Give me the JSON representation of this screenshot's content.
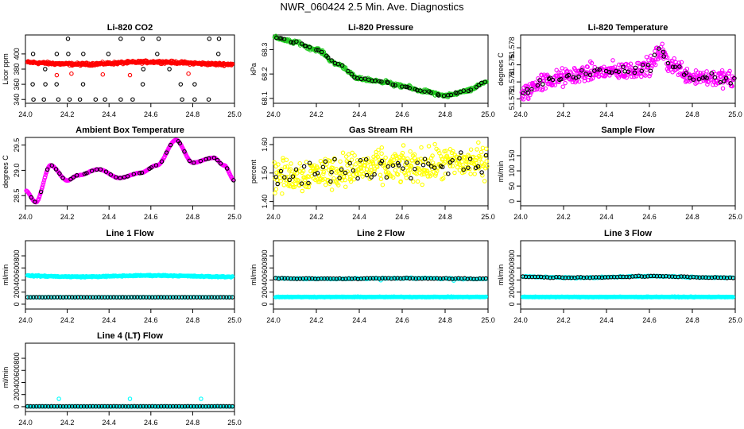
{
  "page": {
    "title": "NWR_060424  2.5 Min. Ave. Diagnostics"
  },
  "colors": {
    "black": "#000000",
    "red": "#ff0000",
    "green": "#22cc22",
    "magenta": "#ff00ff",
    "yellow": "#ffff00",
    "cyan": "#00ffff"
  },
  "chart_data": [
    {
      "type": "scatter",
      "title": "Li-820 CO2",
      "ylabel": "Licor ppm",
      "xlim": [
        24.0,
        25.0
      ],
      "ylim": [
        335,
        425
      ],
      "xticks": [
        "24.0",
        "24.2",
        "24.4",
        "24.6",
        "24.8",
        "25.0"
      ],
      "xtick_values": [
        24.0,
        24.2,
        24.4,
        24.6,
        24.8,
        25.0
      ],
      "yticks": [
        "340",
        "360",
        "380",
        "400"
      ],
      "ytick_values": [
        340,
        360,
        380,
        400
      ],
      "series": [
        {
          "name": "all",
          "color": "#ff0000",
          "marker": "open",
          "gen": "band",
          "n": 400,
          "base": 388,
          "amp": 1.5,
          "noise": 1.5,
          "extras": [
            [
              24.15,
              372
            ],
            [
              24.22,
              374
            ],
            [
              24.37,
              373
            ],
            [
              24.5,
              372
            ],
            [
              24.78,
              374
            ]
          ]
        },
        {
          "name": "avg",
          "color": "#000000",
          "marker": "open",
          "gen": "levels",
          "x": [
            24.03,
            24.09,
            24.15,
            24.21,
            24.27,
            24.33,
            24.39,
            24.45,
            24.51,
            24.57,
            24.63,
            24.69,
            24.75,
            24.81,
            24.87,
            24.93,
            24.99
          ],
          "levels": [
            340,
            360,
            380,
            400,
            420
          ]
        }
      ]
    },
    {
      "type": "scatter",
      "title": "Li-820 Pressure",
      "ylabel": "kPa",
      "xlim": [
        24.0,
        25.0
      ],
      "ylim": [
        68.08,
        68.36
      ],
      "xticks": [
        "24.0",
        "24.2",
        "24.4",
        "24.6",
        "24.8",
        "25.0"
      ],
      "xtick_values": [
        24.0,
        24.2,
        24.4,
        24.6,
        24.8,
        25.0
      ],
      "yticks": [
        "68.1",
        "68.2",
        "68.3"
      ],
      "ytick_values": [
        68.1,
        68.2,
        68.3
      ],
      "series": [
        {
          "name": "all",
          "color": "#22cc22",
          "marker": "open",
          "gen": "curve",
          "n": 350,
          "noise": 0.006,
          "x": [
            24.0,
            24.1,
            24.2,
            24.3,
            24.4,
            24.5,
            24.6,
            24.7,
            24.8,
            24.9,
            25.0
          ],
          "y": [
            68.35,
            68.33,
            68.3,
            68.24,
            68.18,
            68.17,
            68.15,
            68.13,
            68.11,
            68.13,
            68.17
          ]
        },
        {
          "name": "avg",
          "color": "#000000",
          "marker": "open",
          "gen": "curve",
          "n": 60,
          "noise": 0.003,
          "x": [
            24.0,
            24.1,
            24.2,
            24.3,
            24.4,
            24.5,
            24.6,
            24.7,
            24.8,
            24.9,
            25.0
          ],
          "y": [
            68.35,
            68.33,
            68.3,
            68.24,
            68.18,
            68.17,
            68.15,
            68.13,
            68.11,
            68.13,
            68.17
          ]
        }
      ]
    },
    {
      "type": "scatter",
      "title": "Li-820 Temperature",
      "ylabel": "degrees C",
      "xlim": [
        24.0,
        25.0
      ],
      "ylim": [
        51.5715,
        51.5795
      ],
      "xticks": [
        "24.0",
        "24.2",
        "24.4",
        "24.6",
        "24.8",
        "25.0"
      ],
      "xtick_values": [
        24.0,
        24.2,
        24.4,
        24.6,
        24.8,
        25.0
      ],
      "yticks": [
        "51.572",
        "51.574",
        "51.576",
        "51.578"
      ],
      "ytick_values": [
        51.572,
        51.574,
        51.576,
        51.578
      ],
      "series": [
        {
          "name": "all",
          "color": "#ff00ff",
          "marker": "open",
          "gen": "curve",
          "n": 420,
          "noise": 0.0009,
          "x": [
            24.0,
            24.1,
            24.2,
            24.3,
            24.4,
            24.5,
            24.6,
            24.65,
            24.7,
            24.8,
            24.9,
            25.0
          ],
          "y": [
            51.5725,
            51.574,
            51.5745,
            51.575,
            51.5752,
            51.5753,
            51.5758,
            51.5775,
            51.576,
            51.5747,
            51.5745,
            51.5741
          ]
        },
        {
          "name": "avg",
          "color": "#000000",
          "marker": "open",
          "gen": "curve",
          "n": 60,
          "noise": 0.0005,
          "x": [
            24.0,
            24.1,
            24.2,
            24.3,
            24.4,
            24.5,
            24.6,
            24.65,
            24.7,
            24.8,
            24.9,
            25.0
          ],
          "y": [
            51.5725,
            51.574,
            51.5745,
            51.575,
            51.5752,
            51.5753,
            51.5758,
            51.5775,
            51.576,
            51.5747,
            51.5745,
            51.5741
          ]
        }
      ]
    },
    {
      "type": "scatter",
      "title": "Ambient Box Temperature",
      "ylabel": "degrees C",
      "xlim": [
        24.0,
        25.0
      ],
      "ylim": [
        28.3,
        29.65
      ],
      "xticks": [
        "24.0",
        "24.2",
        "24.4",
        "24.6",
        "24.8",
        "25.0"
      ],
      "xtick_values": [
        24.0,
        24.2,
        24.4,
        24.6,
        24.8,
        25.0
      ],
      "yticks": [
        "28.5",
        "29.0",
        "29.5"
      ],
      "ytick_values": [
        28.5,
        29.0,
        29.5
      ],
      "series": [
        {
          "name": "all",
          "color": "#ff00ff",
          "marker": "open",
          "gen": "curve",
          "n": 400,
          "noise": 0.004,
          "x": [
            24.0,
            24.05,
            24.12,
            24.2,
            24.25,
            24.35,
            24.45,
            24.55,
            24.63,
            24.72,
            24.8,
            24.9,
            24.95,
            25.0
          ],
          "y": [
            28.6,
            28.37,
            29.1,
            28.8,
            28.9,
            29.02,
            28.85,
            28.95,
            29.1,
            29.6,
            29.15,
            29.25,
            29.1,
            28.8
          ]
        },
        {
          "name": "avg",
          "color": "#000000",
          "marker": "open",
          "gen": "curve",
          "n": 45,
          "noise": 0.003,
          "x": [
            24.0,
            24.05,
            24.12,
            24.2,
            24.25,
            24.35,
            24.45,
            24.55,
            24.63,
            24.72,
            24.8,
            24.9,
            24.95,
            25.0
          ],
          "y": [
            28.6,
            28.37,
            29.1,
            28.8,
            28.9,
            29.02,
            28.85,
            28.95,
            29.1,
            29.6,
            29.15,
            29.25,
            29.1,
            28.8
          ]
        }
      ]
    },
    {
      "type": "scatter",
      "title": "Gas Stream RH",
      "ylabel": "percent",
      "xlim": [
        24.0,
        25.0
      ],
      "ylim": [
        1.385,
        1.625
      ],
      "xticks": [
        "24.0",
        "24.2",
        "24.4",
        "24.6",
        "24.8",
        "25.0"
      ],
      "xtick_values": [
        24.0,
        24.2,
        24.4,
        24.6,
        24.8,
        25.0
      ],
      "yticks": [
        "1.40",
        "1.50",
        "1.60"
      ],
      "ytick_values": [
        1.4,
        1.5,
        1.6
      ],
      "series": [
        {
          "name": "all",
          "color": "#ffff00",
          "marker": "open",
          "gen": "curve",
          "n": 420,
          "noise": 0.05,
          "x": [
            24.0,
            24.5,
            25.0
          ],
          "y": [
            1.49,
            1.52,
            1.54
          ]
        },
        {
          "name": "avg",
          "color": "#000000",
          "marker": "open",
          "gen": "curve",
          "n": 60,
          "noise": 0.035,
          "x": [
            24.0,
            24.5,
            25.0
          ],
          "y": [
            1.49,
            1.52,
            1.54
          ]
        }
      ]
    },
    {
      "type": "scatter",
      "title": "Sample Flow",
      "ylabel": "ml/min",
      "xlim": [
        24.0,
        25.0
      ],
      "ylim": [
        -15,
        210
      ],
      "xticks": [
        "24.0",
        "24.2",
        "24.4",
        "24.6",
        "24.8",
        "25.0"
      ],
      "xtick_values": [
        24.0,
        24.2,
        24.4,
        24.6,
        24.8,
        25.0
      ],
      "yticks": [
        "0",
        "50",
        "100",
        "150"
      ],
      "ytick_values": [
        0,
        50,
        100,
        150
      ],
      "series": []
    },
    {
      "type": "scatter",
      "title": "Line 1 Flow",
      "ylabel": "ml/min",
      "xlim": [
        24.0,
        25.0
      ],
      "ylim": [
        -80,
        1050
      ],
      "xticks": [
        "24.0",
        "24.2",
        "24.4",
        "24.6",
        "24.8",
        "25.0"
      ],
      "xtick_values": [
        24.0,
        24.2,
        24.4,
        24.6,
        24.8,
        25.0
      ],
      "yticks": [
        "0",
        "200",
        "400",
        "600",
        "800"
      ],
      "ytick_values": [
        0,
        200,
        400,
        600,
        800
      ],
      "series": [
        {
          "name": "cyan",
          "color": "#00ffff",
          "marker": "open",
          "gen": "band",
          "n": 300,
          "base": 465,
          "amp": 10,
          "noise": 8,
          "extras": []
        },
        {
          "name": "cyan-low",
          "color": "#00ffff",
          "marker": "open",
          "gen": "band",
          "n": 120,
          "base": 115,
          "amp": 0,
          "noise": 2,
          "extras": []
        },
        {
          "name": "avg",
          "color": "#000000",
          "marker": "open",
          "gen": "band",
          "n": 70,
          "base": 115,
          "amp": 0,
          "noise": 1,
          "extras": []
        }
      ]
    },
    {
      "type": "scatter",
      "title": "Line 2 Flow",
      "ylabel": "ml/min",
      "xlim": [
        24.0,
        25.0
      ],
      "ylim": [
        -80,
        1050
      ],
      "xticks": [
        "24.0",
        "24.2",
        "24.4",
        "24.6",
        "24.8",
        "25.0"
      ],
      "xtick_values": [
        24.0,
        24.2,
        24.4,
        24.6,
        24.8,
        25.0
      ],
      "yticks": [
        "0",
        "200",
        "400",
        "600",
        "800"
      ],
      "ytick_values": [
        0,
        200,
        400,
        600,
        800
      ],
      "series": [
        {
          "name": "cyan-low",
          "color": "#00ffff",
          "marker": "open",
          "gen": "band",
          "n": 300,
          "base": 120,
          "amp": 0,
          "noise": 4,
          "extras": []
        },
        {
          "name": "cyan",
          "color": "#00ffff",
          "marker": "open",
          "gen": "band",
          "n": 150,
          "base": 425,
          "amp": 5,
          "noise": 8,
          "extras": [
            [
              24.5,
              395
            ],
            [
              24.84,
              390
            ]
          ]
        },
        {
          "name": "avg",
          "color": "#000000",
          "marker": "open",
          "gen": "band",
          "n": 70,
          "base": 425,
          "amp": 4,
          "noise": 6,
          "extras": []
        }
      ]
    },
    {
      "type": "scatter",
      "title": "Line 3 Flow",
      "ylabel": "ml/min",
      "xlim": [
        24.0,
        25.0
      ],
      "ylim": [
        -80,
        1050
      ],
      "xticks": [
        "24.0",
        "24.2",
        "24.4",
        "24.6",
        "24.8",
        "25.0"
      ],
      "xtick_values": [
        24.0,
        24.2,
        24.4,
        24.6,
        24.8,
        25.0
      ],
      "yticks": [
        "0",
        "200",
        "400",
        "600",
        "800"
      ],
      "ytick_values": [
        0,
        200,
        400,
        600,
        800
      ],
      "series": [
        {
          "name": "cyan-low",
          "color": "#00ffff",
          "marker": "open",
          "gen": "band",
          "n": 300,
          "base": 120,
          "amp": 0,
          "noise": 4,
          "extras": []
        },
        {
          "name": "cyan",
          "color": "#00ffff",
          "marker": "open",
          "gen": "band",
          "n": 150,
          "base": 450,
          "amp": 12,
          "noise": 8,
          "extras": []
        },
        {
          "name": "avg",
          "color": "#000000",
          "marker": "open",
          "gen": "band",
          "n": 70,
          "base": 450,
          "amp": 12,
          "noise": 6,
          "extras": []
        }
      ]
    },
    {
      "type": "scatter",
      "title": "Line 4 (LT) Flow",
      "ylabel": "ml/min",
      "xlim": [
        24.0,
        25.0
      ],
      "ylim": [
        -80,
        1050
      ],
      "xticks": [
        "24.0",
        "24.2",
        "24.4",
        "24.6",
        "24.8",
        "25.0"
      ],
      "xtick_values": [
        24.0,
        24.2,
        24.4,
        24.6,
        24.8,
        25.0
      ],
      "yticks": [
        "0",
        "200",
        "400",
        "600",
        "800"
      ],
      "ytick_values": [
        0,
        200,
        400,
        600,
        800
      ],
      "series": [
        {
          "name": "cyan",
          "color": "#00ffff",
          "marker": "open",
          "gen": "band",
          "n": 200,
          "base": 5,
          "amp": 0,
          "noise": 2,
          "extras": [
            [
              24.16,
              130
            ],
            [
              24.5,
              130
            ],
            [
              24.84,
              130
            ]
          ]
        },
        {
          "name": "avg",
          "color": "#000000",
          "marker": "open",
          "gen": "band",
          "n": 70,
          "base": 5,
          "amp": 0,
          "noise": 1,
          "extras": []
        }
      ]
    }
  ]
}
